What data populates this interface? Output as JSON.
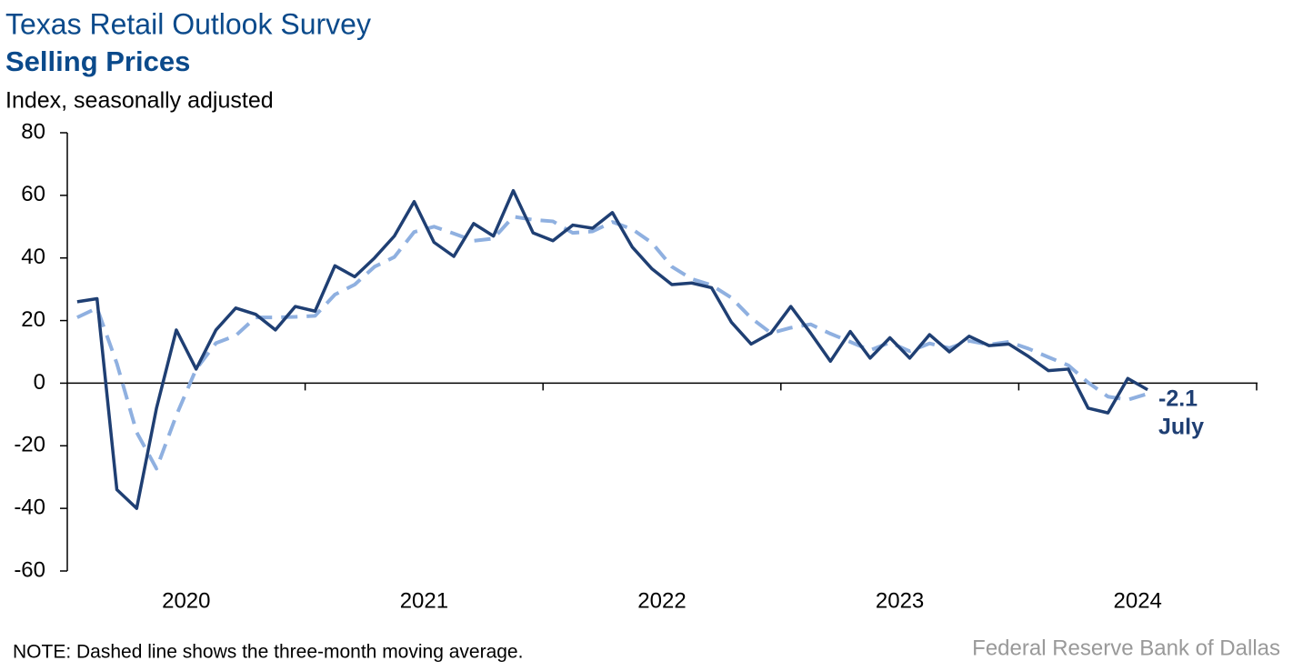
{
  "chart_data": {
    "type": "line",
    "title": "Texas Retail Outlook Survey",
    "subtitle": "Selling Prices",
    "y_label": "Index, seasonally adjusted",
    "note": "NOTE: Dashed line shows the three-month moving average.",
    "source": "Federal Reserve Bank of Dallas",
    "annotation": "July",
    "categories": [
      null,
      null,
      null,
      null,
      null,
      null,
      "2020",
      null,
      null,
      null,
      null,
      null,
      null,
      null,
      null,
      null,
      null,
      null,
      "2021",
      null,
      null,
      null,
      null,
      null,
      null,
      null,
      null,
      null,
      null,
      null,
      "2022",
      null,
      null,
      null,
      null,
      null,
      null,
      null,
      null,
      null,
      null,
      null,
      "2023",
      null,
      null,
      null,
      null,
      null,
      null,
      null,
      null,
      null,
      null,
      null,
      "2024"
    ],
    "series": [
      {
        "name": "Selling Prices",
        "color": "#1f3f73",
        "dashed": false,
        "values": [
          26,
          27,
          -34,
          -40,
          -8,
          17,
          4.5,
          17,
          24,
          22,
          17,
          24.5,
          23,
          37.5,
          34,
          40,
          47,
          58,
          45,
          40.5,
          51,
          47,
          61.5,
          48,
          45.5,
          50.5,
          49.5,
          54.5,
          43.5,
          36.5,
          31.5,
          32,
          30.5,
          19.5,
          12.5,
          16,
          24.5,
          16,
          7,
          16.5,
          8,
          14.5,
          8,
          15.5,
          10,
          15,
          12,
          12.5,
          8.5,
          4,
          4.5,
          -8,
          -9.5,
          1.5,
          -2.1
        ]
      },
      {
        "name": "Three-month moving average",
        "color": "#8fb0e0",
        "dashed": true,
        "values": [
          21,
          24,
          6.3,
          -15.7,
          -27.3,
          -10.3,
          4.5,
          12.8,
          15.2,
          21,
          21,
          21.2,
          21.5,
          28.3,
          31.5,
          37.2,
          40.3,
          48.3,
          50,
          47.8,
          45.5,
          46.2,
          53.2,
          52.2,
          51.7,
          48,
          48.5,
          51.5,
          49.2,
          44.8,
          37.2,
          33.3,
          31.3,
          27.3,
          20.8,
          16,
          17.7,
          18.8,
          15.8,
          13.2,
          10.5,
          13,
          10.2,
          12.7,
          11.2,
          13.5,
          12.3,
          13.2,
          11,
          8.3,
          5.7,
          0.2,
          -4.3,
          -5.3,
          -3.4
        ]
      }
    ],
    "ylim": [
      -60,
      80
    ],
    "yticks": [
      -60,
      -40,
      -20,
      0,
      20,
      40,
      60,
      80
    ],
    "grid": false
  }
}
